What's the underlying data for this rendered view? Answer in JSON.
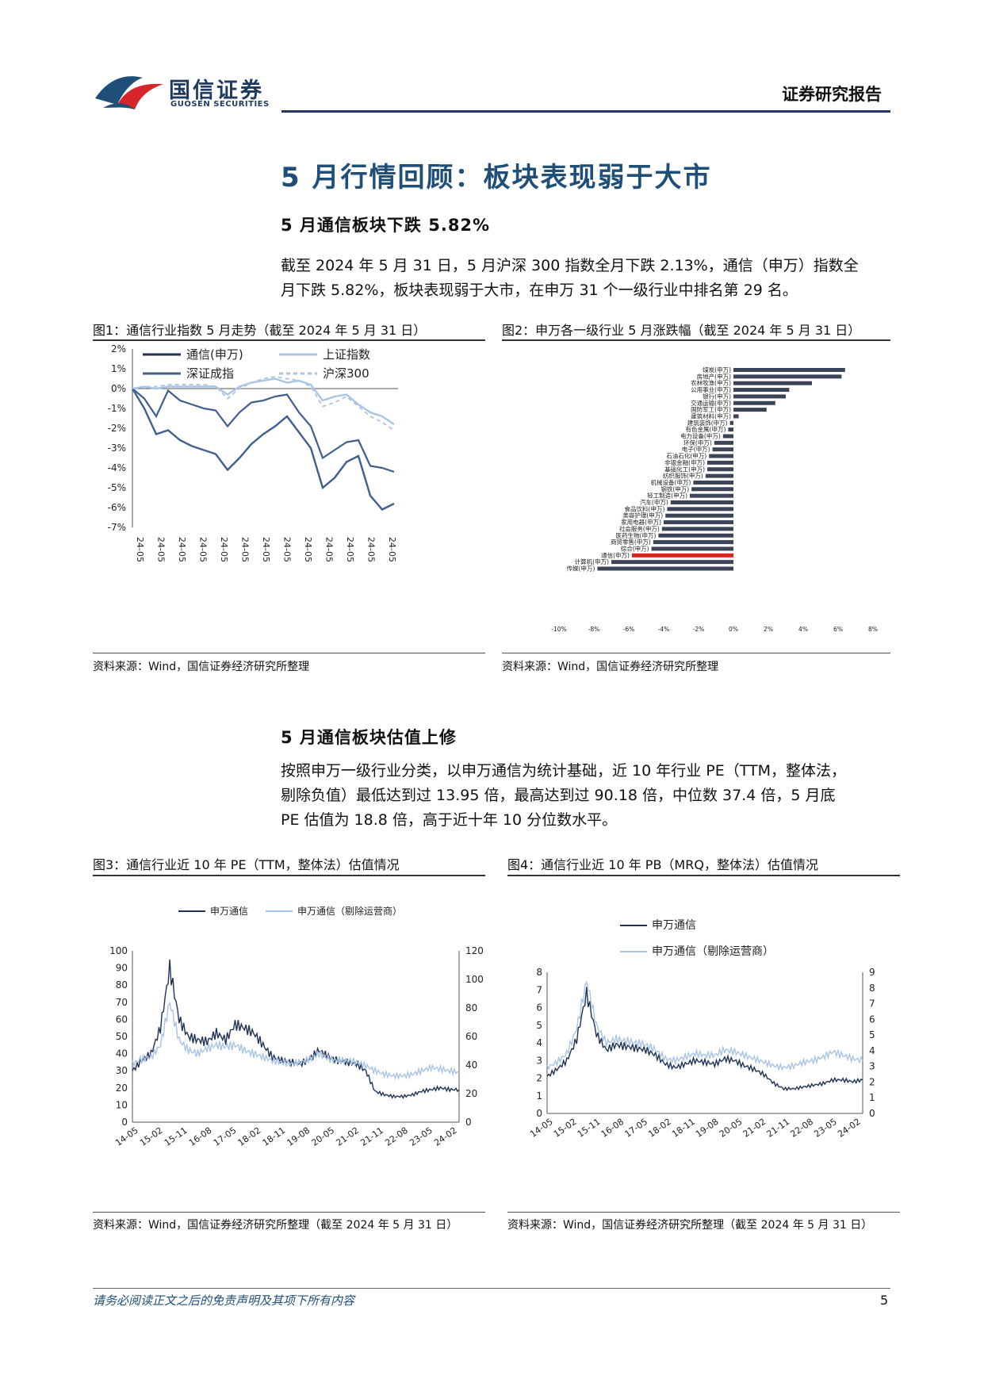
{
  "header": {
    "company_cn": "国信证券",
    "company_en": "GUOSEN SECURITIES",
    "report_type": "证券研究报告"
  },
  "section": {
    "title": "5 月行情回顾：板块表现弱于大市",
    "sub1": "5 月通信板块下跌 5.82%",
    "para1_l1": "截至 2024 年 5 月 31 日，5 月沪深 300 指数全月下跌 2.13%，通信（申万）指数全",
    "para1_l2": "月下跌 5.82%，板块表现弱于大市，在申万 31 个一级行业中排名第 29 名。",
    "sub2": "5 月通信板块估值上修",
    "para2_l1": "按照申万一级行业分类，以申万通信为统计基础，近 10 年行业 PE（TTM，整体法，",
    "para2_l2": "剔除负值）最低达到过 13.95 倍，最高达到过 90.18 倍，中位数 37.4 倍，5 月底",
    "para2_l3": "PE 估值为 18.8 倍，高于近十年 10 分位数水平。"
  },
  "figures": {
    "fig1_title": "图1：通信行业指数 5 月走势（截至 2024 年 5 月 31 日）",
    "fig2_title": "图2：申万各一级行业 5 月涨跌幅（截至 2024 年 5 月 31 日）",
    "fig3_title": "图3：通信行业近 10 年 PE（TTM，整体法）估值情况",
    "fig4_title": "图4：通信行业近 10 年 PB（MRQ，整体法）估值情况",
    "src_short": "资料来源：Wind，国信证券经济研究所整理",
    "src_long": "资料来源：Wind，国信证券经济研究所整理（截至 2024 年 5 月 31 日）"
  },
  "footer": {
    "disclaimer": "请务必阅读正文之后的免责声明及其项下所有内容",
    "page": "5"
  },
  "colors": {
    "dark": "#1f3354",
    "mid": "#3f5f8f",
    "light": "#a9c4e4",
    "accent_red": "#e0201b",
    "bar": "#3b4557"
  },
  "chart_data": [
    {
      "type": "line",
      "ylim": [
        -7,
        2
      ],
      "yticks": [
        "2%",
        "1%",
        "0%",
        "-1%",
        "-2%",
        "-3%",
        "-4%",
        "-5%",
        "-6%",
        "-7%"
      ],
      "xticks": [
        "24-05",
        "24-05",
        "24-05",
        "24-05",
        "24-05",
        "24-05",
        "24-05",
        "24-05",
        "24-05",
        "24-05",
        "24-05",
        "24-05",
        "24-05"
      ],
      "legend": [
        "通信(申万)",
        "上证指数",
        "深证成指",
        "沪深300"
      ],
      "series": [
        {
          "name": "通信(申万)",
          "values": [
            0,
            -1.0,
            -2.3,
            -2.1,
            -2.6,
            -2.9,
            -3.1,
            -3.3,
            -4.1,
            -3.5,
            -2.8,
            -2.3,
            -1.9,
            -1.4,
            -2.2,
            -3.0,
            -5.0,
            -4.5,
            -3.7,
            -3.4,
            -5.4,
            -6.1,
            -5.8
          ]
        },
        {
          "name": "上证指数",
          "values": [
            0,
            0.1,
            0.0,
            0.1,
            0.1,
            0.1,
            0.1,
            0.1,
            -0.3,
            0.1,
            0.3,
            0.4,
            0.5,
            0.3,
            0.4,
            0.2,
            -0.6,
            -0.4,
            -0.3,
            -0.8,
            -1.2,
            -1.4,
            -1.8
          ]
        },
        {
          "name": "深证成指",
          "values": [
            0,
            -0.5,
            -1.4,
            -0.1,
            -0.6,
            -0.8,
            -1.0,
            -1.1,
            -1.9,
            -1.2,
            -0.7,
            -0.6,
            -0.4,
            -0.3,
            -1.2,
            -1.9,
            -3.5,
            -3.1,
            -2.7,
            -2.6,
            -3.9,
            -4.0,
            -4.2
          ]
        },
        {
          "name": "沪深300",
          "values": [
            0,
            0.1,
            0.1,
            0.2,
            0.2,
            0.2,
            0.2,
            0.1,
            -0.5,
            0.0,
            0.3,
            0.5,
            0.6,
            0.5,
            0.4,
            0.1,
            -0.9,
            -0.7,
            -0.4,
            -0.9,
            -1.4,
            -1.7,
            -2.1
          ]
        }
      ]
    },
    {
      "type": "bar",
      "orientation": "horizontal",
      "xlim": [
        -10,
        8
      ],
      "xticks": [
        "-10%",
        "-8%",
        "-6%",
        "-4%",
        "-2%",
        "0%",
        "2%",
        "4%",
        "6%",
        "8%"
      ],
      "categories": [
        "煤炭(申万)",
        "房地产(申万)",
        "农林牧渔(申万)",
        "公用事业(申万)",
        "银行(申万)",
        "交通运输(申万)",
        "国防军工(申万)",
        "建筑材料(申万)",
        "建筑装饰(申万)",
        "有色金属(申万)",
        "电力设备(申万)",
        "环保(申万)",
        "电子(申万)",
        "石油石化(申万)",
        "非银金融(申万)",
        "基础化工(申万)",
        "纺织服饰(申万)",
        "机械设备(申万)",
        "钢铁(申万)",
        "轻工制造(申万)",
        "汽车(申万)",
        "食品饮料(申万)",
        "美容护理(申万)",
        "家用电器(申万)",
        "社会服务(申万)",
        "医药生物(申万)",
        "商贸零售(申万)",
        "综合(申万)",
        "通信(申万)",
        "计算机(申万)",
        "传媒(申万)"
      ],
      "values": [
        6.4,
        6.2,
        4.5,
        3.2,
        3.0,
        2.4,
        1.9,
        0.3,
        -0.2,
        -0.3,
        -0.6,
        -1.1,
        -1.2,
        -1.4,
        -1.5,
        -1.5,
        -1.6,
        -2.3,
        -2.4,
        -2.5,
        -3.6,
        -3.8,
        -3.9,
        -4.0,
        -4.1,
        -4.3,
        -4.6,
        -4.7,
        -5.82,
        -7.0,
        -7.8
      ],
      "highlight": "通信(申万)"
    },
    {
      "type": "line",
      "dual_axis": true,
      "y_left": [
        0,
        100
      ],
      "y_right": [
        0,
        120
      ],
      "yticks_left": [
        "100",
        "90",
        "80",
        "70",
        "60",
        "50",
        "40",
        "30",
        "20",
        "10",
        "0"
      ],
      "yticks_right": [
        "120",
        "100",
        "80",
        "60",
        "40",
        "20",
        "0"
      ],
      "xticks": [
        "14-05",
        "15-02",
        "15-11",
        "16-08",
        "17-05",
        "18-02",
        "18-11",
        "19-08",
        "20-05",
        "21-02",
        "21-11",
        "22-08",
        "23-05",
        "24-02"
      ],
      "series": [
        {
          "name": "申万通信",
          "values": [
            30,
            36,
            40,
            55,
            90,
            60,
            50,
            48,
            47,
            52,
            48,
            57,
            55,
            52,
            45,
            38,
            36,
            35,
            34,
            37,
            42,
            38,
            36,
            35,
            34,
            30,
            18,
            16,
            15,
            15,
            16,
            18,
            19,
            20,
            19,
            19
          ]
        },
        {
          "name": "申万通信（剔除运营商）",
          "values": [
            34,
            37,
            38,
            45,
            70,
            48,
            42,
            40,
            43,
            45,
            44,
            45,
            42,
            40,
            38,
            36,
            35,
            34,
            35,
            37,
            40,
            37,
            36,
            36,
            35,
            33,
            30,
            28,
            27,
            27,
            28,
            30,
            32,
            31,
            30,
            29
          ]
        }
      ]
    },
    {
      "type": "line",
      "dual_axis": true,
      "y_left": [
        0,
        8
      ],
      "y_right": [
        0,
        9
      ],
      "yticks_left": [
        "8",
        "7",
        "6",
        "5",
        "4",
        "3",
        "2",
        "1",
        "0"
      ],
      "yticks_right": [
        "9",
        "8",
        "7",
        "6",
        "5",
        "4",
        "3",
        "2",
        "1",
        "0"
      ],
      "xticks": [
        "14-05",
        "15-02",
        "15-11",
        "16-08",
        "17-05",
        "18-02",
        "18-11",
        "19-08",
        "20-05",
        "21-02",
        "21-11",
        "22-08",
        "23-05",
        "24-02"
      ],
      "series": [
        {
          "name": "申万通信",
          "values": [
            2.1,
            2.5,
            3.0,
            4.2,
            6.8,
            4.5,
            3.6,
            3.9,
            3.8,
            3.7,
            3.6,
            3.3,
            2.8,
            2.6,
            2.8,
            3.0,
            2.9,
            2.8,
            3.1,
            3.0,
            2.7,
            2.5,
            2.2,
            1.7,
            1.4,
            1.4,
            1.5,
            1.6,
            1.7,
            1.9,
            1.9,
            1.8,
            1.9
          ]
        },
        {
          "name": "申万通信（剔除运营商）",
          "values": [
            2.6,
            2.9,
            3.4,
            4.8,
            7.5,
            5.0,
            4.0,
            4.2,
            4.1,
            4.0,
            3.9,
            3.6,
            3.1,
            3.0,
            3.2,
            3.4,
            3.3,
            3.3,
            3.6,
            3.5,
            3.3,
            3.1,
            2.9,
            2.7,
            2.6,
            2.7,
            2.9,
            3.0,
            3.2,
            3.5,
            3.3,
            3.1,
            3.0
          ]
        }
      ]
    }
  ]
}
